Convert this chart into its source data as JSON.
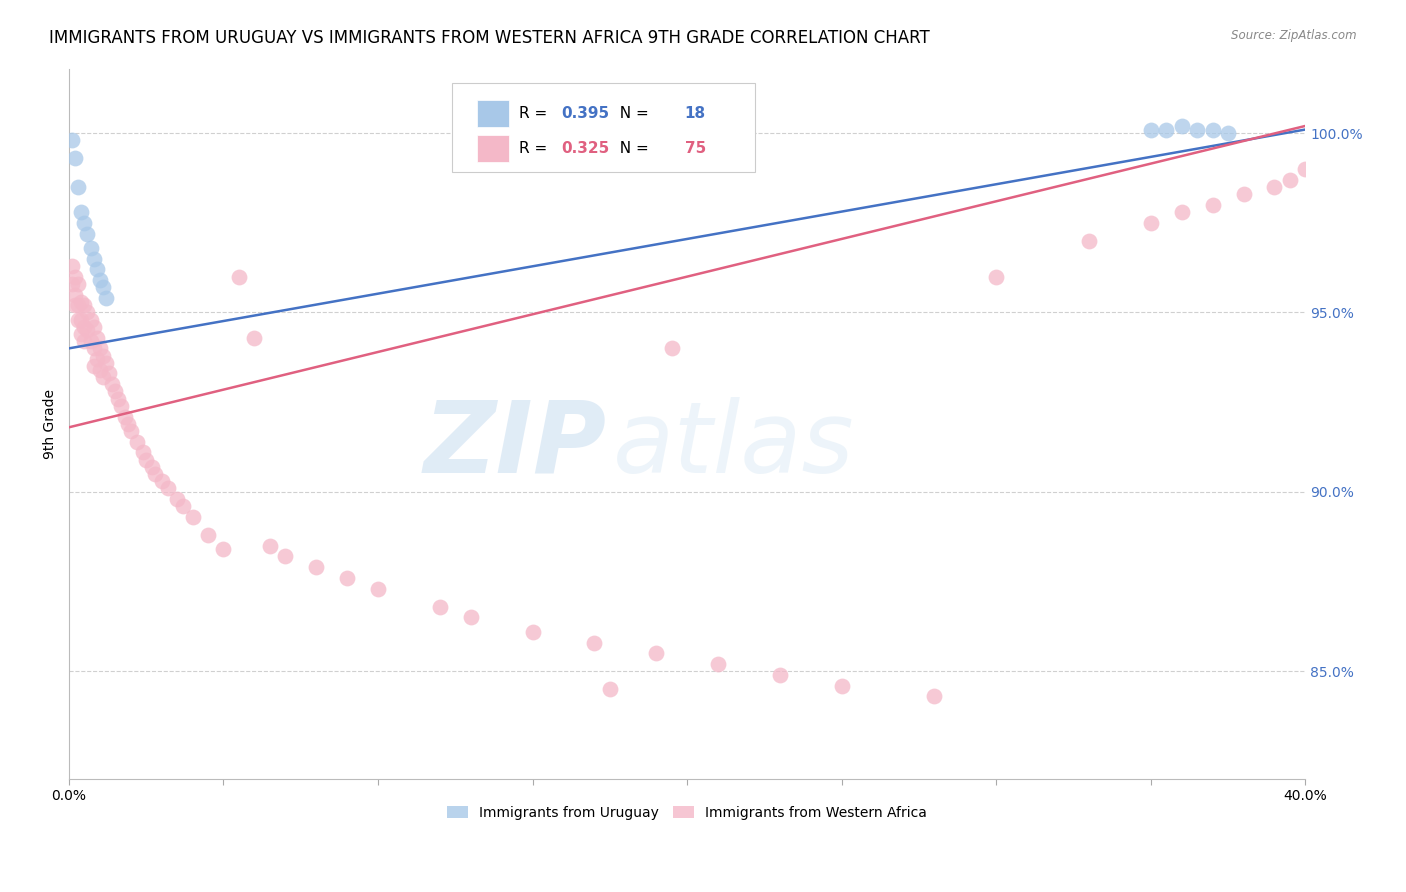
{
  "title": "IMMIGRANTS FROM URUGUAY VS IMMIGRANTS FROM WESTERN AFRICA 9TH GRADE CORRELATION CHART",
  "source_text": "Source: ZipAtlas.com",
  "ylabel": "9th Grade",
  "xlim": [
    0.0,
    0.4
  ],
  "ylim": [
    0.82,
    1.018
  ],
  "yticks": [
    0.85,
    0.9,
    0.95,
    1.0
  ],
  "ytick_labels_right": [
    "85.0%",
    "90.0%",
    "95.0%",
    "100.0%"
  ],
  "xtick_positions": [
    0.0,
    0.05,
    0.1,
    0.15,
    0.2,
    0.25,
    0.3,
    0.35,
    0.4
  ],
  "xtick_labels": [
    "0.0%",
    "",
    "",
    "",
    "",
    "",
    "",
    "",
    "40.0%"
  ],
  "watermark_zip": "ZIP",
  "watermark_atlas": "atlas",
  "blue_color": "#a8c8e8",
  "pink_color": "#f4b8c8",
  "blue_line_color": "#4472c4",
  "pink_line_color": "#e06080",
  "right_axis_color": "#4472c4",
  "grid_color": "#d0d0d0",
  "title_fontsize": 12,
  "axis_label_fontsize": 10,
  "tick_fontsize": 10,
  "legend_r1": "0.395",
  "legend_n1": "18",
  "legend_r2": "0.325",
  "legend_n2": "75",
  "uruguay_x": [
    0.001,
    0.002,
    0.003,
    0.004,
    0.005,
    0.006,
    0.007,
    0.008,
    0.009,
    0.01,
    0.011,
    0.012,
    0.35,
    0.355,
    0.36,
    0.365,
    0.37,
    0.375
  ],
  "uruguay_y": [
    0.998,
    0.993,
    0.985,
    0.978,
    0.975,
    0.972,
    0.968,
    0.965,
    0.962,
    0.959,
    0.957,
    0.954,
    1.001,
    1.001,
    1.002,
    1.001,
    1.001,
    1.0
  ],
  "wa_x": [
    0.001,
    0.001,
    0.002,
    0.002,
    0.002,
    0.003,
    0.003,
    0.003,
    0.004,
    0.004,
    0.004,
    0.005,
    0.005,
    0.005,
    0.006,
    0.006,
    0.007,
    0.007,
    0.008,
    0.008,
    0.008,
    0.009,
    0.009,
    0.01,
    0.01,
    0.011,
    0.011,
    0.012,
    0.013,
    0.014,
    0.015,
    0.016,
    0.017,
    0.018,
    0.019,
    0.02,
    0.022,
    0.024,
    0.025,
    0.027,
    0.028,
    0.03,
    0.032,
    0.035,
    0.037,
    0.04,
    0.045,
    0.05,
    0.055,
    0.06,
    0.065,
    0.07,
    0.08,
    0.09,
    0.1,
    0.12,
    0.13,
    0.15,
    0.17,
    0.19,
    0.21,
    0.23,
    0.25,
    0.28,
    0.3,
    0.33,
    0.35,
    0.36,
    0.37,
    0.38,
    0.39,
    0.395,
    0.4,
    0.195,
    0.175
  ],
  "wa_y": [
    0.963,
    0.958,
    0.96,
    0.955,
    0.952,
    0.958,
    0.952,
    0.948,
    0.953,
    0.948,
    0.944,
    0.952,
    0.946,
    0.942,
    0.95,
    0.945,
    0.948,
    0.942,
    0.946,
    0.94,
    0.935,
    0.943,
    0.937,
    0.94,
    0.934,
    0.938,
    0.932,
    0.936,
    0.933,
    0.93,
    0.928,
    0.926,
    0.924,
    0.921,
    0.919,
    0.917,
    0.914,
    0.911,
    0.909,
    0.907,
    0.905,
    0.903,
    0.901,
    0.898,
    0.896,
    0.893,
    0.888,
    0.884,
    0.96,
    0.943,
    0.885,
    0.882,
    0.879,
    0.876,
    0.873,
    0.868,
    0.865,
    0.861,
    0.858,
    0.855,
    0.852,
    0.849,
    0.846,
    0.843,
    0.96,
    0.97,
    0.975,
    0.978,
    0.98,
    0.983,
    0.985,
    0.987,
    0.99,
    0.94,
    0.845
  ]
}
